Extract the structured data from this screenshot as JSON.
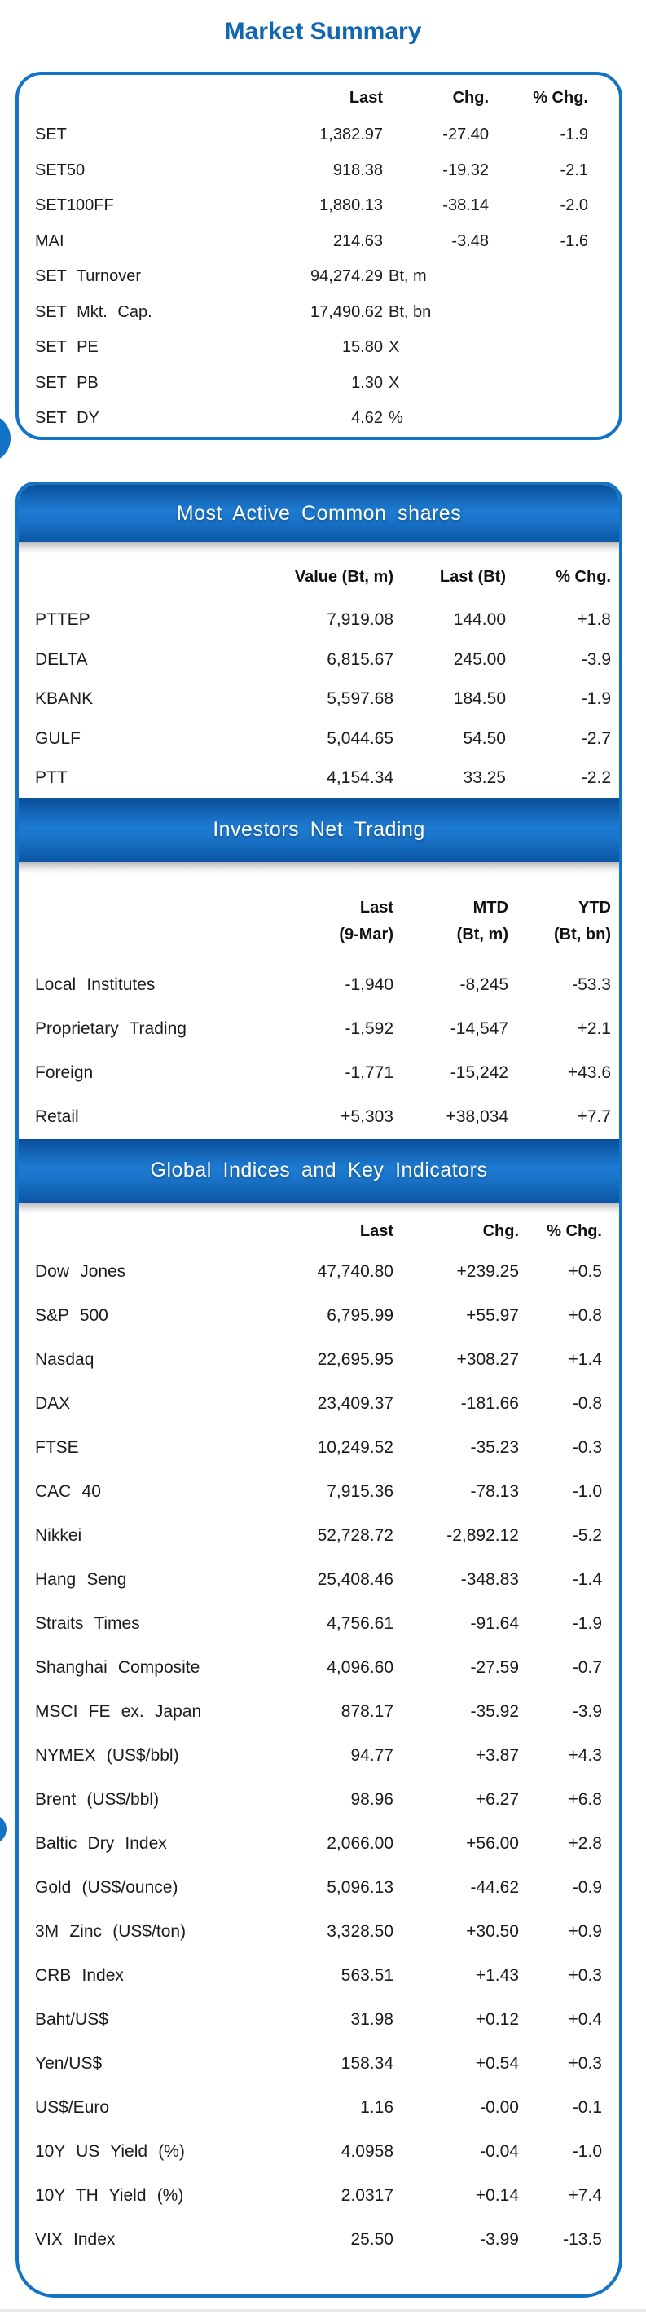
{
  "title": "Market Summary",
  "colors": {
    "accent_border": "#1273c7",
    "bar_gradient_top": "#0a4f9a",
    "bar_gradient_mid": "#1d7bd2",
    "bar_gradient_bottom": "#0b57a5",
    "title_text": "#1167b1",
    "highlight_red": "#ee1e23"
  },
  "market_summary": {
    "columns": [
      "Last",
      "Chg.",
      "% Chg."
    ],
    "rows": [
      {
        "label": "SET",
        "value": "1,382.97",
        "unit": "",
        "chg": "-27.40",
        "pct": "-1.9"
      },
      {
        "label": "SET50",
        "value": "918.38",
        "unit": "",
        "chg": "-19.32",
        "pct": "-2.1"
      },
      {
        "label": "SET100FF",
        "value": "1,880.13",
        "unit": "",
        "chg": "-38.14",
        "pct": "-2.0"
      },
      {
        "label": "MAI",
        "value": "214.63",
        "unit": "",
        "chg": "-3.48",
        "pct": "-1.6"
      },
      {
        "label": "SET Turnover",
        "value": "94,274.29",
        "unit": "Bt, m",
        "chg": "",
        "pct": ""
      },
      {
        "label": "SET Mkt. Cap.",
        "value": "17,490.62",
        "unit": "Bt, bn",
        "chg": "",
        "pct": ""
      },
      {
        "label": "SET PE",
        "value": "15.80",
        "unit": "X",
        "chg": "",
        "pct": ""
      },
      {
        "label": "SET PB",
        "value": "1.30",
        "unit": "X",
        "chg": "",
        "pct": ""
      },
      {
        "label": "SET DY",
        "value": "4.62",
        "unit": "%",
        "chg": "",
        "pct": ""
      }
    ]
  },
  "most_active": {
    "header": "Most Active Common shares",
    "columns": [
      "Value (Bt, m)",
      "Last (Bt)",
      "% Chg."
    ],
    "rows": [
      {
        "label": "PTTEP",
        "value": "7,919.08",
        "chg": "144.00",
        "pct": "+1.8"
      },
      {
        "label": "DELTA",
        "value": "6,815.67",
        "chg": "245.00",
        "pct": "-3.9"
      },
      {
        "label": "KBANK",
        "value": "5,597.68",
        "chg": "184.50",
        "pct": "-1.9"
      },
      {
        "label": "GULF",
        "value": "5,044.65",
        "chg": "54.50",
        "pct": "-2.7"
      },
      {
        "label": "PTT",
        "value": "4,154.34",
        "chg": "33.25",
        "pct": "-2.2"
      }
    ]
  },
  "investors_net_trading": {
    "header": "Investors Net Trading",
    "columns": [
      {
        "line1": "Last",
        "line2": "(9-Mar)"
      },
      {
        "line1": "MTD",
        "line2": "(Bt, m)"
      },
      {
        "line1": "YTD",
        "line2": "(Bt, bn)"
      }
    ],
    "rows": [
      {
        "label": "Local Institutes",
        "value": "-1,940",
        "chg": "-8,245",
        "pct": "-53.3"
      },
      {
        "label": "Proprietary Trading",
        "value": "-1,592",
        "chg": "-14,547",
        "pct": "+2.1"
      },
      {
        "label": "Foreign",
        "value": "-1,771",
        "chg": "-15,242",
        "pct": "+43.6"
      },
      {
        "label": "Retail",
        "value": "+5,303",
        "chg": "+38,034",
        "pct": "+7.7"
      }
    ]
  },
  "global_indices": {
    "header": "Global Indices and Key Indicators",
    "columns": [
      "Last",
      "Chg.",
      "% Chg."
    ],
    "rows": [
      {
        "label": "Dow Jones",
        "value": "47,740.80",
        "chg": "+239.25",
        "pct": "+0.5"
      },
      {
        "label": "S&P 500",
        "value": "6,795.99",
        "chg": "+55.97",
        "pct": "+0.8"
      },
      {
        "label": "Nasdaq",
        "value": "22,695.95",
        "chg": "+308.27",
        "pct": "+1.4"
      },
      {
        "label": "DAX",
        "value": "23,409.37",
        "chg": "-181.66",
        "pct": "-0.8"
      },
      {
        "label": "FTSE",
        "value": "10,249.52",
        "chg": "-35.23",
        "pct": "-0.3"
      },
      {
        "label": "CAC 40",
        "value": "7,915.36",
        "chg": "-78.13",
        "pct": "-1.0"
      },
      {
        "label": "Nikkei",
        "value": "52,728.72",
        "chg": "-2,892.12",
        "pct": "-5.2"
      },
      {
        "label": "Hang Seng",
        "value": "25,408.46",
        "chg": "-348.83",
        "pct": "-1.4"
      },
      {
        "label": "Straits Times",
        "value": "4,756.61",
        "chg": "-91.64",
        "pct": "-1.9"
      },
      {
        "label": "Shanghai Composite",
        "value": "4,096.60",
        "chg": "-27.59",
        "pct": "-0.7"
      },
      {
        "label": "MSCI FE ex. Japan",
        "value": "878.17",
        "chg": "-35.92",
        "pct": "-3.9"
      },
      {
        "label": "NYMEX (US$/bbl)",
        "value": "94.77",
        "chg": "+3.87",
        "pct": "+4.3"
      },
      {
        "label": "Brent (US$/bbl)",
        "value": "98.96",
        "chg": "+6.27",
        "pct": "+6.8"
      },
      {
        "label": "Baltic Dry Index",
        "value": "2,066.00",
        "chg": "+56.00",
        "pct": "+2.8"
      },
      {
        "label": "Gold (US$/ounce)",
        "value": "5,096.13",
        "chg": "-44.62",
        "pct": "-0.9"
      },
      {
        "label": "3M Zinc (US$/ton)",
        "value": "3,328.50",
        "chg": "+30.50",
        "pct": "+0.9"
      },
      {
        "label": "CRB Index",
        "value": "563.51",
        "chg": "+1.43",
        "pct": "+0.3"
      },
      {
        "label": "Baht/US$",
        "value": "31.98",
        "chg": "+0.12",
        "pct": "+0.4"
      },
      {
        "label": "Yen/US$",
        "value": "158.34",
        "chg": "+0.54",
        "pct": "+0.3"
      },
      {
        "label": "US$/Euro",
        "value": "1.16",
        "chg": "-0.00",
        "pct": "-0.1"
      },
      {
        "label": "10Y US Yield (%)",
        "value": "4.0958",
        "chg": "-0.04",
        "pct": "-1.0"
      },
      {
        "label": "10Y TH Yield (%)",
        "value": "2.0317",
        "chg": "+0.14",
        "pct": "+7.4"
      },
      {
        "label": "VIX Index",
        "value": "25.50",
        "chg": "-3.99",
        "pct": "-13.5"
      }
    ]
  }
}
